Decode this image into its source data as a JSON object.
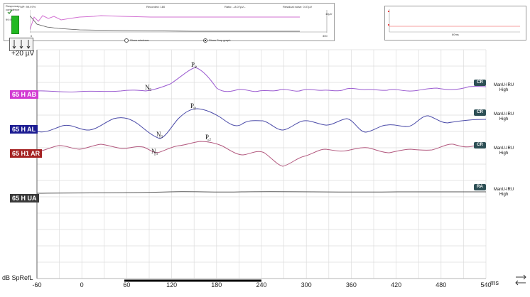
{
  "status": {
    "response_confidence_label": "Response confidence",
    "confidence_value": "99.97%",
    "fmp_text": "FMP: 99.97%",
    "recorded_text": "Recorded: 180",
    "ratio_text": "Ratio: --8.07µV--",
    "residual_text": "Residual noise: 0.07µV",
    "max_label": "10µV",
    "scale_left": "0",
    "scale_right": "300",
    "show_windows_label": "Show windows",
    "show_fmp_label": "Show Fmp graph"
  },
  "mini_panel": {
    "time_label": "60ms"
  },
  "scale": {
    "label": "+20 µV"
  },
  "waveforms": [
    {
      "label": "65 H AB",
      "color": "#d23bd2",
      "badge": "CR",
      "side_line1": "ManU-IRU",
      "side_line2": "High"
    },
    {
      "label": "65 H AL",
      "color": "#1c1c92",
      "badge": "CR",
      "side_line1": "ManU-IRU",
      "side_line2": "High"
    },
    {
      "label": "65 H1 AR",
      "color": "#a52323",
      "badge": "CR",
      "side_line1": "ManU-IRU",
      "side_line2": "High"
    },
    {
      "label": "65 H UA",
      "color": "#3a3a3a",
      "badge": "RA",
      "side_line1": "ManU-IRU",
      "side_line2": "High"
    }
  ],
  "peaks": {
    "n1": "N₁",
    "p2": "P₂"
  },
  "axis": {
    "ticks": [
      "-60",
      "0",
      "60",
      "120",
      "180",
      "240",
      "300",
      "360",
      "420",
      "480",
      "540"
    ],
    "unit": "dB SpRefL",
    "time_unit": "ms"
  }
}
